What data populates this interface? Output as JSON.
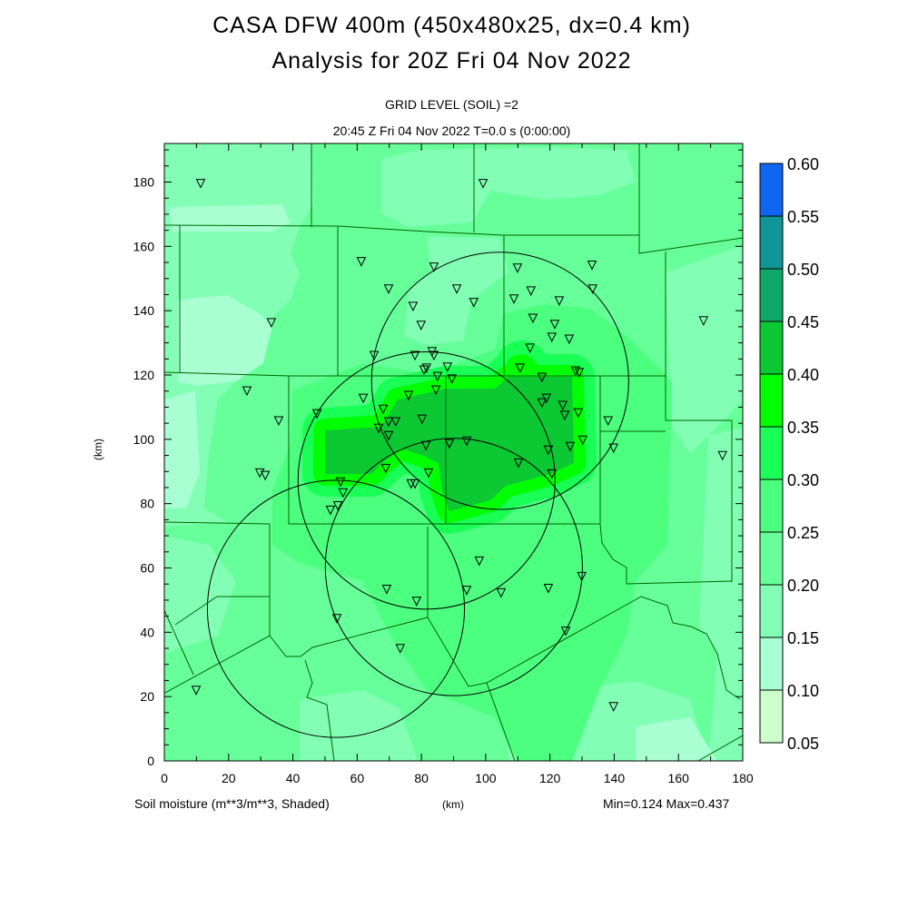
{
  "header": {
    "title_line1": "CASA DFW 400m (450x480x25, dx=0.4 km)",
    "title_line2": "Analysis for 20Z Fri 04 Nov 2022",
    "grid_level": "GRID LEVEL (SOIL) =2",
    "time_line": "20:45 Z Fri 04 Nov 2022    T=0.0 s (0:00:00)"
  },
  "footer": {
    "field_label": "Soil moisture (m**3/m**3, Shaded)",
    "x_unit": "(km)",
    "minmax": "Min=0.124 Max=0.437"
  },
  "chart_data": {
    "type": "heatmap",
    "title": "Soil moisture (m**3/m**3, Shaded)",
    "xlabel": "(km)",
    "ylabel": "(km)",
    "xlim": [
      0,
      180
    ],
    "ylim": [
      0,
      192
    ],
    "x_ticks": [
      "0",
      "20",
      "40",
      "60",
      "80",
      "100",
      "120",
      "140",
      "160",
      "180"
    ],
    "y_ticks": [
      "0",
      "20",
      "40",
      "60",
      "80",
      "100",
      "120",
      "140",
      "160",
      "180"
    ],
    "min": 0.124,
    "max": 0.437,
    "colorbar": {
      "levels": [
        "0.05",
        "0.10",
        "0.15",
        "0.20",
        "0.25",
        "0.30",
        "0.35",
        "0.40",
        "0.45",
        "0.50",
        "0.55",
        "0.60"
      ],
      "colors": [
        "#ccffcc",
        "#a8ffd2",
        "#82ffb4",
        "#66ff99",
        "#4cff7e",
        "#1aff55",
        "#00ff00",
        "#0cc833",
        "#10a868",
        "#109696",
        "#1066f0"
      ]
    },
    "range_rings_km": [
      {
        "x": 104.5,
        "y": 118.2,
        "r": 40
      },
      {
        "x": 81.6,
        "y": 87.2,
        "r": 40
      },
      {
        "x": 53.4,
        "y": 47.3,
        "r": 40
      },
      {
        "x": 90.1,
        "y": 60.3,
        "r": 40
      }
    ],
    "stations_km": [
      [
        11.3,
        179.7
      ],
      [
        99.2,
        179.7
      ],
      [
        61.3,
        155.4
      ],
      [
        83.9,
        153.7
      ],
      [
        109.9,
        153.4
      ],
      [
        133.1,
        154.3
      ],
      [
        33.3,
        136.4
      ],
      [
        69.8,
        146.9
      ],
      [
        91.0,
        146.9
      ],
      [
        77.4,
        141.5
      ],
      [
        96.3,
        142.7
      ],
      [
        108.8,
        143.8
      ],
      [
        114.1,
        146.3
      ],
      [
        122.9,
        143.2
      ],
      [
        133.3,
        146.9
      ],
      [
        79.9,
        135.6
      ],
      [
        114.7,
        137.8
      ],
      [
        121.5,
        135.9
      ],
      [
        126.0,
        131.3
      ],
      [
        120.6,
        131.9
      ],
      [
        113.8,
        128.5
      ],
      [
        65.3,
        126.2
      ],
      [
        78.0,
        126.2
      ],
      [
        83.3,
        127.4
      ],
      [
        83.9,
        126.2
      ],
      [
        88.1,
        122.6
      ],
      [
        80.8,
        121.7
      ],
      [
        81.6,
        122.3
      ],
      [
        85.0,
        119.7
      ],
      [
        89.5,
        118.9
      ],
      [
        110.7,
        122.3
      ],
      [
        117.5,
        119.4
      ],
      [
        129.1,
        120.9
      ],
      [
        128.0,
        121.4
      ],
      [
        84.5,
        115.5
      ],
      [
        76.0,
        113.8
      ],
      [
        25.7,
        115.2
      ],
      [
        61.9,
        112.9
      ],
      [
        117.5,
        111.5
      ],
      [
        118.9,
        112.9
      ],
      [
        124.0,
        110.7
      ],
      [
        124.6,
        107.6
      ],
      [
        128.8,
        108.4
      ],
      [
        47.5,
        108.1
      ],
      [
        35.6,
        105.9
      ],
      [
        80.2,
        106.4
      ],
      [
        138.1,
        105.9
      ],
      [
        68.1,
        109.5
      ],
      [
        66.7,
        103.6
      ],
      [
        69.8,
        105.6
      ],
      [
        72.0,
        105.6
      ],
      [
        69.8,
        101.3
      ],
      [
        94.1,
        99.6
      ],
      [
        88.7,
        98.8
      ],
      [
        130.2,
        99.9
      ],
      [
        126.3,
        97.9
      ],
      [
        139.8,
        97.4
      ],
      [
        119.5,
        96.8
      ],
      [
        173.7,
        95.1
      ],
      [
        81.4,
        98.2
      ],
      [
        110.2,
        92.8
      ],
      [
        29.7,
        89.7
      ],
      [
        31.4,
        88.9
      ],
      [
        68.9,
        91.1
      ],
      [
        82.2,
        89.7
      ],
      [
        120.6,
        89.4
      ],
      [
        76.8,
        86.3
      ],
      [
        78.0,
        86.3
      ],
      [
        54.8,
        86.9
      ],
      [
        55.6,
        83.5
      ],
      [
        54.0,
        79.5
      ],
      [
        51.7,
        78.1
      ],
      [
        98.0,
        62.3
      ],
      [
        69.2,
        53.5
      ],
      [
        78.5,
        49.8
      ],
      [
        94.1,
        53.2
      ],
      [
        104.8,
        52.4
      ],
      [
        119.5,
        53.8
      ],
      [
        129.9,
        57.5
      ],
      [
        124.9,
        40.5
      ],
      [
        53.7,
        44.4
      ],
      [
        73.4,
        35.1
      ],
      [
        9.9,
        22.1
      ],
      [
        139.8,
        17.0
      ],
      [
        167.8,
        137.0
      ]
    ]
  }
}
